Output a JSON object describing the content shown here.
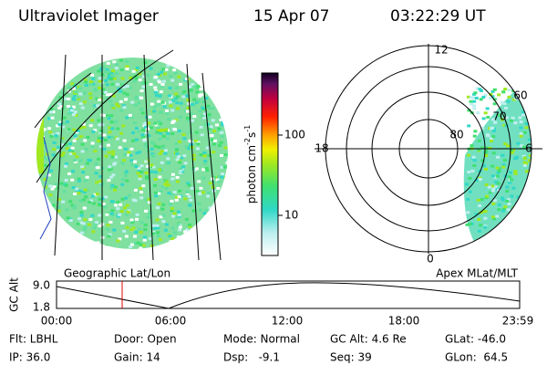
{
  "header": {
    "title": "Ultraviolet Imager",
    "date": "15 Apr 07",
    "time": "03:22:29 UT"
  },
  "colorbar": {
    "label": {
      "unit": "photon cm",
      "exp1": "-2",
      "s": "s",
      "exp2": "-1"
    },
    "ticks": [
      "100",
      "10"
    ]
  },
  "polar": {
    "hours": [
      "12",
      "18",
      "6",
      "0"
    ],
    "latitudes": [
      "60",
      "70",
      "80"
    ]
  },
  "panels": {
    "left": "Geographic Lat/Lon",
    "right": "Apex MLat/MLT"
  },
  "altitude": {
    "label": "GC Alt",
    "ticks": [
      "9.0",
      "1.8"
    ],
    "times": [
      "00:00",
      "06:00",
      "12:00",
      "18:00",
      "23:59"
    ]
  },
  "status": {
    "rows": [
      [
        "Flt: LBHL",
        "Door: Open",
        "Mode: Normal",
        "GC Alt: 4.6 Re",
        "GLat: -46.0"
      ],
      [
        "IP: 36.0",
        "Gain: 14",
        "Dsp:   -9.1",
        "Seq: 39",
        "GLon:  64.5"
      ]
    ]
  }
}
